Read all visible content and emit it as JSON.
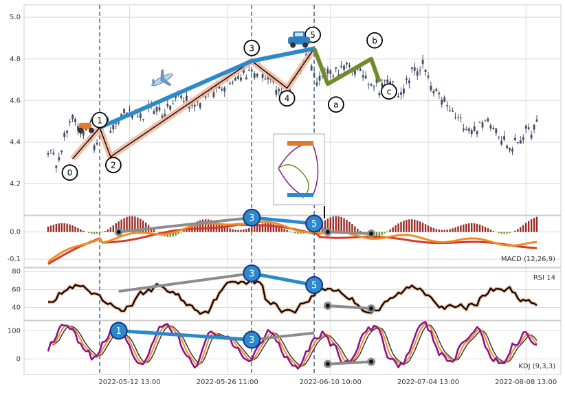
{
  "chart_data": {
    "type": "candlestick",
    "y_ticks_main": [
      "4.2",
      "4.4",
      "4.6",
      "4.8",
      "5.0"
    ],
    "ylim_main": [
      4.05,
      5.06
    ],
    "x_ticks": [
      "2022-05-12 13:00",
      "2022-05-26 11:00",
      "2022-06-10 10:00",
      "2022-07-04 13:00",
      "2022-08-08 13:00"
    ],
    "price_path": [
      [
        0,
        4.36
      ],
      [
        3,
        4.3
      ],
      [
        7,
        4.45
      ],
      [
        10,
        4.52
      ],
      [
        13,
        4.44
      ],
      [
        18,
        4.4
      ],
      [
        21,
        4.52
      ],
      [
        24,
        4.44
      ],
      [
        28,
        4.56
      ],
      [
        33,
        4.5
      ],
      [
        38,
        4.58
      ],
      [
        43,
        4.53
      ],
      [
        48,
        4.62
      ],
      [
        53,
        4.58
      ],
      [
        58,
        4.63
      ],
      [
        63,
        4.66
      ],
      [
        67,
        4.7
      ],
      [
        72,
        4.73
      ],
      [
        78,
        4.74
      ],
      [
        82,
        4.68
      ],
      [
        86,
        4.62
      ],
      [
        89,
        4.66
      ],
      [
        92,
        4.74
      ],
      [
        96,
        4.84
      ],
      [
        98,
        4.7
      ],
      [
        100,
        4.72
      ],
      [
        105,
        4.74
      ],
      [
        110,
        4.76
      ],
      [
        115,
        4.73
      ],
      [
        118,
        4.7
      ],
      [
        122,
        4.66
      ],
      [
        126,
        4.7
      ],
      [
        130,
        4.62
      ],
      [
        134,
        4.74
      ],
      [
        138,
        4.76
      ],
      [
        142,
        4.64
      ],
      [
        146,
        4.58
      ],
      [
        150,
        4.52
      ],
      [
        154,
        4.48
      ],
      [
        158,
        4.46
      ],
      [
        162,
        4.52
      ],
      [
        166,
        4.44
      ],
      [
        170,
        4.36
      ],
      [
        174,
        4.42
      ],
      [
        178,
        4.46
      ],
      [
        180,
        4.48
      ]
    ],
    "elliott_wave": {
      "labels": [
        "0",
        "1",
        "2",
        "3",
        "4",
        "5"
      ],
      "points": [
        [
          9,
          4.32
        ],
        [
          19,
          4.47
        ],
        [
          23,
          4.33
        ],
        [
          75,
          4.79
        ],
        [
          88,
          4.66
        ],
        [
          98,
          4.85
        ]
      ]
    },
    "correction_wave": {
      "labels": [
        "a",
        "b",
        "c"
      ],
      "points": [
        [
          98,
          4.85
        ],
        [
          103,
          4.68
        ],
        [
          119,
          4.8
        ],
        [
          122,
          4.69
        ]
      ]
    },
    "macd_ticks": [
      "0.0",
      "-0.1"
    ],
    "macd_ylim": [
      -0.13,
      0.06
    ],
    "rsi_ticks": [
      "40",
      "60",
      "80"
    ],
    "rsi_ylim": [
      26,
      84
    ],
    "kdj_ticks": [
      "0",
      "100"
    ],
    "kdj_ylim": [
      -55,
      135
    ],
    "divergence_markers": {
      "macd": [
        {
          "label": "3",
          "x": 75,
          "y": 0.053
        },
        {
          "label": "5",
          "x": 98,
          "y": 0.031
        }
      ],
      "rsi": [
        {
          "label": "3",
          "x": 75,
          "y": 78
        },
        {
          "label": "5",
          "x": 98,
          "y": 65
        }
      ],
      "kdj": [
        {
          "label": "1",
          "x": 26,
          "y": 100
        },
        {
          "label": "3",
          "x": 75,
          "y": 68
        }
      ]
    }
  },
  "panels": {
    "macd_label": "MACD (12,26,9)",
    "rsi_label": "RSI 14",
    "kdj_label": "KDJ (9,3,3)"
  },
  "colors": {
    "candle": "#3f4a63",
    "wave_main": "#2b8acb",
    "wave_fill": "#f2b496",
    "wave_correction": "#6f8c2a",
    "macd_fast": "#f28a1e",
    "macd_slow": "#d33b2c",
    "hist_pos": "#9a2a22",
    "hist_neg": "#6f8c2a",
    "rsi_line": "#000000",
    "k_line": "#8a138a",
    "d_line": "#f28a1e",
    "j_line": "#333333",
    "grey_line": "#8c8c8c",
    "grid": "#d9d9d9",
    "vline": "#4a6280"
  },
  "icons": [
    "scooter-icon",
    "airplane-icon",
    "car-icon"
  ]
}
